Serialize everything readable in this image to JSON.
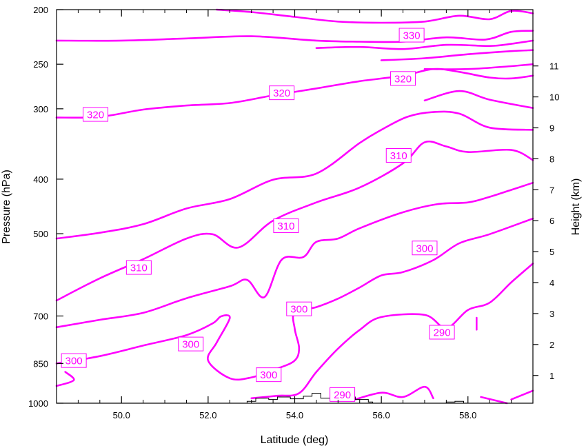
{
  "chart_data": {
    "type": "line",
    "subtype": "cross-section contour plot of potential temperature",
    "xlabel": "Latitude (deg)",
    "ylabel": "Pressure (hPa)",
    "y2label": "Height (km)",
    "xlim": [
      48.5,
      59.5
    ],
    "ylim": [
      1000,
      200
    ],
    "yscale": "log",
    "xticks": [
      50,
      52,
      54,
      56,
      58
    ],
    "xtick_labels": [
      "50.0",
      "52.0",
      "54.0",
      "56.0",
      "58.0"
    ],
    "yticks": [
      1000,
      850,
      700,
      500,
      400,
      300,
      250,
      200
    ],
    "ytick_labels": [
      "1000",
      "850",
      "700",
      "500",
      "400",
      "300",
      "250",
      "200"
    ],
    "y2ticks": [
      1,
      2,
      3,
      4,
      5,
      6,
      7,
      8,
      9,
      10,
      11
    ],
    "y2tick_labels": [
      "1",
      "2",
      "3",
      "4",
      "5",
      "6",
      "7",
      "8",
      "9",
      "10",
      "11"
    ],
    "contour_color": "#ff00ff",
    "terrain_color": "#000000",
    "contours": [
      {
        "level": 330,
        "points": [
          [
            52.2,
            200
          ],
          [
            53.0,
            202
          ],
          [
            54.0,
            206
          ],
          [
            55.0,
            210
          ],
          [
            56.0,
            211
          ],
          [
            57.0,
            210
          ],
          [
            57.8,
            205
          ],
          [
            58.5,
            208
          ],
          [
            59.0,
            201
          ],
          [
            59.5,
            203
          ]
        ]
      },
      {
        "level": 330,
        "points": [
          [
            48.5,
            227
          ],
          [
            50.0,
            227
          ],
          [
            51.5,
            225
          ],
          [
            53.0,
            223
          ],
          [
            54.5,
            227
          ],
          [
            55.5,
            228
          ],
          [
            56.5,
            228
          ],
          [
            57.5,
            224
          ],
          [
            58.4,
            226
          ],
          [
            59.0,
            219
          ],
          [
            59.5,
            218
          ]
        ]
      },
      {
        "level": 330,
        "points": [
          [
            54.5,
            234
          ],
          [
            55.5,
            233
          ],
          [
            56.5,
            235
          ],
          [
            57.5,
            231
          ],
          [
            58.5,
            232
          ],
          [
            59.0,
            230
          ],
          [
            59.5,
            227
          ]
        ]
      },
      {
        "level": 330,
        "points": [
          [
            56.0,
            246
          ],
          [
            57.0,
            244
          ],
          [
            58.0,
            240
          ],
          [
            59.0,
            237
          ],
          [
            59.5,
            236
          ]
        ]
      },
      {
        "level": 330,
        "points": [
          [
            57.0,
            255
          ],
          [
            58.0,
            255
          ],
          [
            59.0,
            252
          ],
          [
            59.5,
            250
          ]
        ]
      },
      {
        "level": 320,
        "points": [
          [
            48.5,
            311
          ],
          [
            49.5,
            310
          ],
          [
            50.5,
            301
          ],
          [
            51.5,
            296
          ],
          [
            52.5,
            293
          ],
          [
            53.5,
            284
          ],
          [
            54.5,
            276
          ],
          [
            55.5,
            268
          ],
          [
            56.5,
            262
          ],
          [
            57.2,
            255
          ],
          [
            57.8,
            258
          ],
          [
            58.5,
            264
          ],
          [
            59.0,
            265
          ],
          [
            59.5,
            262
          ]
        ]
      },
      {
        "level": 320,
        "points": [
          [
            57.0,
            290
          ],
          [
            57.8,
            279
          ],
          [
            58.5,
            289
          ],
          [
            59.5,
            299
          ]
        ]
      },
      {
        "level": 310,
        "points": [
          [
            48.5,
            510
          ],
          [
            49.5,
            498
          ],
          [
            50.5,
            481
          ],
          [
            51.5,
            451
          ],
          [
            52.5,
            434
          ],
          [
            53.5,
            401
          ],
          [
            54.5,
            391
          ],
          [
            55.5,
            345
          ],
          [
            56.0,
            327
          ],
          [
            56.6,
            310
          ],
          [
            57.2,
            304
          ],
          [
            57.8,
            306
          ],
          [
            58.5,
            324
          ],
          [
            59.5,
            327
          ]
        ]
      },
      {
        "level": 310,
        "points": [
          [
            48.5,
            657
          ],
          [
            49.5,
            600
          ],
          [
            50.5,
            555
          ],
          [
            51.5,
            510
          ],
          [
            52.1,
            501
          ],
          [
            52.7,
            529
          ],
          [
            53.5,
            474
          ],
          [
            54.5,
            440
          ],
          [
            55.5,
            414
          ],
          [
            56.5,
            375
          ],
          [
            57.0,
            344
          ],
          [
            57.5,
            350
          ],
          [
            58.0,
            358
          ],
          [
            59.0,
            355
          ],
          [
            59.5,
            370
          ]
        ]
      },
      {
        "level": 300,
        "points": [
          [
            48.5,
            733
          ],
          [
            49.5,
            711
          ],
          [
            50.5,
            691
          ],
          [
            51.5,
            651
          ],
          [
            52.5,
            620
          ],
          [
            52.9,
            604
          ],
          [
            53.3,
            648
          ],
          [
            53.7,
            556
          ],
          [
            54.2,
            550
          ],
          [
            54.5,
            517
          ],
          [
            55.0,
            510
          ],
          [
            55.5,
            489
          ],
          [
            56.5,
            458
          ],
          [
            57.3,
            443
          ],
          [
            58.0,
            440
          ],
          [
            58.5,
            430
          ],
          [
            59.0,
            418
          ],
          [
            59.5,
            406
          ]
        ]
      },
      {
        "level": 300,
        "points": [
          [
            48.5,
            850
          ],
          [
            49.5,
            825
          ],
          [
            50.5,
            790
          ],
          [
            51.5,
            757
          ],
          [
            52.1,
            722
          ],
          [
            52.3,
            701
          ],
          [
            52.5,
            706
          ],
          [
            52.2,
            780
          ],
          [
            52.0,
            840
          ],
          [
            52.5,
            903
          ],
          [
            53.0,
            900
          ],
          [
            53.6,
            868
          ],
          [
            54.0,
            840
          ],
          [
            54.1,
            798
          ],
          [
            54.0,
            738
          ],
          [
            54.0,
            690
          ],
          [
            54.5,
            675
          ],
          [
            55.0,
            652
          ],
          [
            55.5,
            623
          ],
          [
            56.0,
            593
          ],
          [
            56.5,
            585
          ],
          [
            57.2,
            557
          ],
          [
            57.8,
            520
          ],
          [
            58.5,
            501
          ],
          [
            59.5,
            470
          ]
        ]
      },
      {
        "level": 300,
        "points": [
          [
            48.5,
            932
          ],
          [
            48.9,
            910
          ],
          [
            48.7,
            880
          ]
        ]
      },
      {
        "level": 290,
        "points": [
          [
            53.0,
            980
          ],
          [
            53.6,
            970
          ],
          [
            54.1,
            960
          ],
          [
            54.5,
            880
          ],
          [
            55.0,
            800
          ],
          [
            55.5,
            741
          ],
          [
            56.0,
            703
          ],
          [
            57.0,
            697
          ],
          [
            57.5,
            735
          ],
          [
            58.0,
            683
          ],
          [
            58.5,
            663
          ],
          [
            59.0,
            610
          ],
          [
            59.5,
            565
          ]
        ]
      },
      {
        "level": 290,
        "points": [
          [
            55.3,
            990
          ],
          [
            56.0,
            958
          ],
          [
            56.5,
            975
          ],
          [
            57.0,
            935
          ],
          [
            57.2,
            980
          ]
        ]
      },
      {
        "level": 290,
        "points": [
          [
            58.3,
            975
          ],
          [
            58.9,
            1000
          ]
        ]
      },
      {
        "level": 290,
        "points": [
          [
            59.0,
            985
          ],
          [
            59.5,
            950
          ]
        ]
      },
      {
        "level": 290,
        "points": [
          [
            58.2,
            705
          ],
          [
            58.2,
            740
          ]
        ]
      }
    ],
    "contour_labels": [
      {
        "text": "330",
        "x": 56.7,
        "y": 222
      },
      {
        "text": "320",
        "x": 56.5,
        "y": 265
      },
      {
        "text": "320",
        "x": 53.7,
        "y": 281
      },
      {
        "text": "320",
        "x": 49.4,
        "y": 307
      },
      {
        "text": "310",
        "x": 56.4,
        "y": 363
      },
      {
        "text": "310",
        "x": 53.8,
        "y": 484
      },
      {
        "text": "310",
        "x": 50.4,
        "y": 574
      },
      {
        "text": "300",
        "x": 57.0,
        "y": 530
      },
      {
        "text": "300",
        "x": 54.1,
        "y": 680
      },
      {
        "text": "300",
        "x": 51.6,
        "y": 785
      },
      {
        "text": "300",
        "x": 53.4,
        "y": 890
      },
      {
        "text": "300",
        "x": 48.9,
        "y": 840
      },
      {
        "text": "290",
        "x": 57.4,
        "y": 748
      },
      {
        "text": "290",
        "x": 55.1,
        "y": 965
      }
    ],
    "terrain": [
      [
        52.5,
        1000
      ],
      [
        52.9,
        992
      ],
      [
        53.1,
        980
      ],
      [
        53.4,
        985
      ],
      [
        53.6,
        975
      ],
      [
        53.9,
        982
      ],
      [
        54.2,
        972
      ],
      [
        54.4,
        960
      ],
      [
        54.6,
        980
      ],
      [
        54.9,
        970
      ],
      [
        55.2,
        975
      ],
      [
        55.4,
        985
      ],
      [
        55.7,
        995
      ],
      [
        55.8,
        1000
      ],
      [
        56.2,
        1000
      ],
      [
        57.0,
        1000
      ],
      [
        57.5,
        995
      ],
      [
        57.7,
        992
      ],
      [
        57.9,
        1000
      ]
    ]
  }
}
